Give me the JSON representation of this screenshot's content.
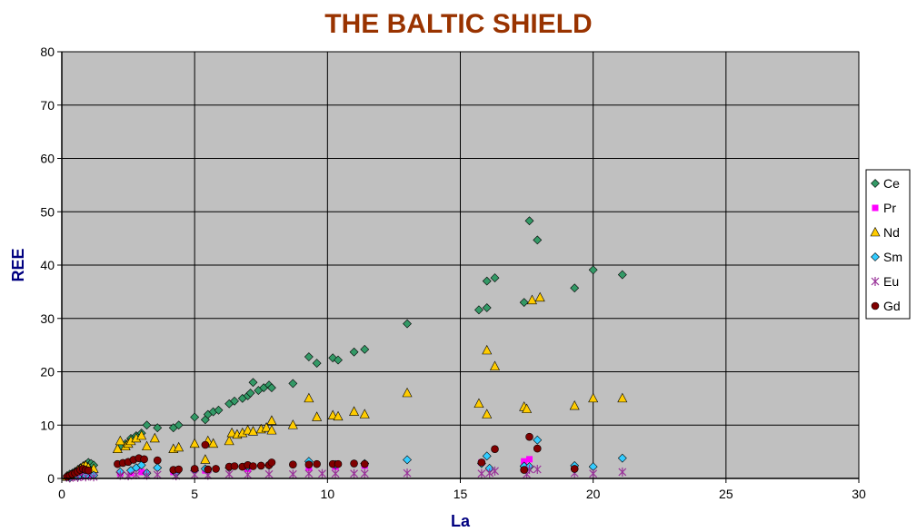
{
  "chart_data": {
    "type": "scatter",
    "title": "THE BALTIC SHIELD",
    "xlabel": "La",
    "ylabel": "REE",
    "xlim": [
      0,
      30
    ],
    "ylim": [
      0,
      80
    ],
    "xticks": [
      0,
      5,
      10,
      15,
      20,
      25,
      30
    ],
    "yticks": [
      0,
      10,
      20,
      30,
      40,
      50,
      60,
      70,
      80
    ],
    "grid": true,
    "legend_position": "right",
    "plot_background": "#c0c0c0",
    "series": [
      {
        "name": "Ce",
        "marker": "diamond",
        "color": "#339966",
        "points": [
          [
            0.2,
            0.5
          ],
          [
            0.3,
            0.8
          ],
          [
            0.4,
            1.0
          ],
          [
            0.5,
            1.3
          ],
          [
            0.6,
            1.6
          ],
          [
            0.7,
            2.0
          ],
          [
            0.8,
            2.3
          ],
          [
            0.9,
            2.6
          ],
          [
            1.0,
            3.0
          ],
          [
            1.1,
            2.8
          ],
          [
            1.2,
            2.5
          ],
          [
            2.2,
            6.0
          ],
          [
            2.4,
            6.5
          ],
          [
            2.6,
            7.5
          ],
          [
            2.8,
            8.0
          ],
          [
            3.0,
            8.5
          ],
          [
            3.2,
            10.0
          ],
          [
            3.6,
            9.5
          ],
          [
            4.2,
            9.5
          ],
          [
            4.4,
            10.0
          ],
          [
            5.0,
            11.5
          ],
          [
            5.4,
            11.0
          ],
          [
            5.5,
            12.0
          ],
          [
            5.7,
            12.5
          ],
          [
            5.9,
            12.8
          ],
          [
            6.3,
            14.0
          ],
          [
            6.5,
            14.5
          ],
          [
            6.8,
            15.0
          ],
          [
            7.0,
            15.5
          ],
          [
            7.1,
            16.0
          ],
          [
            7.2,
            18.0
          ],
          [
            7.4,
            16.5
          ],
          [
            7.6,
            17.0
          ],
          [
            7.8,
            17.5
          ],
          [
            7.9,
            17.0
          ],
          [
            8.7,
            17.8
          ],
          [
            9.3,
            22.8
          ],
          [
            9.6,
            21.6
          ],
          [
            10.2,
            22.6
          ],
          [
            10.4,
            22.2
          ],
          [
            11.0,
            23.7
          ],
          [
            11.4,
            24.2
          ],
          [
            13.0,
            29.0
          ],
          [
            15.7,
            31.6
          ],
          [
            16.0,
            37.0
          ],
          [
            16.0,
            32.0
          ],
          [
            16.3,
            37.6
          ],
          [
            17.4,
            33.0
          ],
          [
            17.6,
            48.3
          ],
          [
            17.9,
            44.7
          ],
          [
            19.3,
            35.7
          ],
          [
            20.0,
            39.1
          ],
          [
            21.1,
            38.2
          ]
        ]
      },
      {
        "name": "Pr",
        "marker": "square",
        "color": "#ff00ff",
        "points": [
          [
            0.3,
            0.2
          ],
          [
            0.5,
            0.3
          ],
          [
            0.7,
            0.4
          ],
          [
            1.0,
            0.6
          ],
          [
            2.2,
            1.0
          ],
          [
            2.6,
            1.0
          ],
          [
            3.0,
            1.2
          ],
          [
            4.2,
            1.2
          ],
          [
            5.4,
            1.5
          ],
          [
            7.0,
            1.8
          ],
          [
            9.3,
            2.0
          ],
          [
            10.3,
            2.2
          ],
          [
            11.4,
            2.4
          ],
          [
            15.8,
            3.0
          ],
          [
            17.4,
            3.2
          ],
          [
            17.6,
            3.6
          ]
        ]
      },
      {
        "name": "Nd",
        "marker": "triangle",
        "color": "#ffcc00",
        "points": [
          [
            0.2,
            0.3
          ],
          [
            0.4,
            0.5
          ],
          [
            0.5,
            1.0
          ],
          [
            0.6,
            1.5
          ],
          [
            0.7,
            1.8
          ],
          [
            0.8,
            2.2
          ],
          [
            0.9,
            2.4
          ],
          [
            1.0,
            2.0
          ],
          [
            1.2,
            1.8
          ],
          [
            2.1,
            5.5
          ],
          [
            2.2,
            7.0
          ],
          [
            2.4,
            6.0
          ],
          [
            2.5,
            6.5
          ],
          [
            2.6,
            7.0
          ],
          [
            2.8,
            7.5
          ],
          [
            3.0,
            8.0
          ],
          [
            3.2,
            6.0
          ],
          [
            3.5,
            7.5
          ],
          [
            4.2,
            5.5
          ],
          [
            4.4,
            5.8
          ],
          [
            5.0,
            6.5
          ],
          [
            5.4,
            3.5
          ],
          [
            5.5,
            7.0
          ],
          [
            5.7,
            6.5
          ],
          [
            6.3,
            7.0
          ],
          [
            6.4,
            8.5
          ],
          [
            6.6,
            8.2
          ],
          [
            6.8,
            8.5
          ],
          [
            7.0,
            9.0
          ],
          [
            7.2,
            8.8
          ],
          [
            7.5,
            9.2
          ],
          [
            7.7,
            9.5
          ],
          [
            7.9,
            9.0
          ],
          [
            7.9,
            10.8
          ],
          [
            8.7,
            10.0
          ],
          [
            9.3,
            15.0
          ],
          [
            9.6,
            11.5
          ],
          [
            10.2,
            11.8
          ],
          [
            10.4,
            11.6
          ],
          [
            11.0,
            12.5
          ],
          [
            11.4,
            12.0
          ],
          [
            13.0,
            16.0
          ],
          [
            15.7,
            14.0
          ],
          [
            16.0,
            24.0
          ],
          [
            16.0,
            12.0
          ],
          [
            16.3,
            21.0
          ],
          [
            17.4,
            13.4
          ],
          [
            17.5,
            13.0
          ],
          [
            17.7,
            33.4
          ],
          [
            18.0,
            33.9
          ],
          [
            19.3,
            13.6
          ],
          [
            20.0,
            15.0
          ],
          [
            21.1,
            15.0
          ]
        ]
      },
      {
        "name": "Sm",
        "marker": "diamond",
        "color": "#33ccff",
        "points": [
          [
            0.3,
            0.1
          ],
          [
            0.6,
            0.3
          ],
          [
            0.9,
            0.5
          ],
          [
            1.2,
            0.6
          ],
          [
            2.2,
            1.2
          ],
          [
            2.6,
            1.5
          ],
          [
            2.8,
            2.0
          ],
          [
            3.0,
            2.5
          ],
          [
            3.2,
            1.0
          ],
          [
            3.6,
            2.0
          ],
          [
            4.3,
            1.0
          ],
          [
            5.0,
            1.5
          ],
          [
            5.4,
            1.8
          ],
          [
            6.3,
            2.0
          ],
          [
            7.0,
            2.2
          ],
          [
            7.8,
            2.5
          ],
          [
            9.3,
            3.2
          ],
          [
            10.3,
            2.6
          ],
          [
            11.4,
            2.8
          ],
          [
            13.0,
            3.5
          ],
          [
            15.8,
            2.8
          ],
          [
            16.0,
            4.2
          ],
          [
            16.1,
            1.9
          ],
          [
            17.4,
            2.3
          ],
          [
            17.6,
            2.2
          ],
          [
            17.9,
            7.2
          ],
          [
            19.3,
            2.4
          ],
          [
            20.0,
            2.2
          ],
          [
            21.1,
            3.8
          ]
        ]
      },
      {
        "name": "Eu",
        "marker": "star",
        "color": "#993399",
        "points": [
          [
            0.3,
            0.1
          ],
          [
            0.6,
            0.2
          ],
          [
            0.9,
            0.3
          ],
          [
            1.2,
            0.3
          ],
          [
            2.2,
            0.6
          ],
          [
            2.5,
            0.5
          ],
          [
            2.8,
            0.7
          ],
          [
            3.2,
            0.6
          ],
          [
            3.6,
            0.7
          ],
          [
            4.3,
            0.5
          ],
          [
            5.0,
            0.7
          ],
          [
            5.5,
            0.6
          ],
          [
            6.3,
            0.8
          ],
          [
            7.0,
            0.7
          ],
          [
            7.8,
            0.8
          ],
          [
            8.7,
            0.8
          ],
          [
            9.3,
            0.9
          ],
          [
            9.8,
            0.9
          ],
          [
            10.3,
            0.9
          ],
          [
            11.0,
            0.9
          ],
          [
            11.4,
            0.9
          ],
          [
            13.0,
            1.0
          ],
          [
            15.8,
            0.9
          ],
          [
            16.1,
            1.0
          ],
          [
            16.3,
            1.4
          ],
          [
            17.5,
            0.8
          ],
          [
            17.6,
            1.7
          ],
          [
            17.9,
            1.7
          ],
          [
            19.3,
            1.0
          ],
          [
            20.0,
            0.9
          ],
          [
            21.1,
            1.2
          ]
        ]
      },
      {
        "name": "Gd",
        "marker": "circle",
        "color": "#800000",
        "points": [
          [
            0.2,
            0.3
          ],
          [
            0.3,
            0.5
          ],
          [
            0.4,
            0.8
          ],
          [
            0.5,
            1.0
          ],
          [
            0.6,
            1.3
          ],
          [
            0.7,
            1.6
          ],
          [
            0.8,
            1.8
          ],
          [
            0.9,
            1.6
          ],
          [
            1.0,
            1.5
          ],
          [
            2.1,
            2.7
          ],
          [
            2.3,
            2.9
          ],
          [
            2.5,
            3.1
          ],
          [
            2.7,
            3.5
          ],
          [
            2.9,
            3.8
          ],
          [
            3.1,
            3.6
          ],
          [
            3.6,
            3.4
          ],
          [
            4.2,
            1.6
          ],
          [
            4.4,
            1.7
          ],
          [
            5.0,
            1.8
          ],
          [
            5.4,
            6.3
          ],
          [
            5.5,
            1.7
          ],
          [
            5.8,
            1.8
          ],
          [
            6.3,
            2.2
          ],
          [
            6.5,
            2.3
          ],
          [
            6.8,
            2.2
          ],
          [
            7.0,
            2.5
          ],
          [
            7.2,
            2.3
          ],
          [
            7.5,
            2.4
          ],
          [
            7.8,
            2.5
          ],
          [
            7.9,
            3.0
          ],
          [
            8.7,
            2.6
          ],
          [
            9.3,
            2.6
          ],
          [
            9.6,
            2.7
          ],
          [
            10.2,
            2.7
          ],
          [
            10.4,
            2.7
          ],
          [
            11.0,
            2.8
          ],
          [
            11.4,
            2.7
          ],
          [
            15.8,
            3.0
          ],
          [
            16.3,
            5.5
          ],
          [
            17.4,
            1.6
          ],
          [
            17.6,
            7.8
          ],
          [
            17.9,
            5.6
          ],
          [
            19.3,
            1.8
          ]
        ]
      }
    ]
  }
}
